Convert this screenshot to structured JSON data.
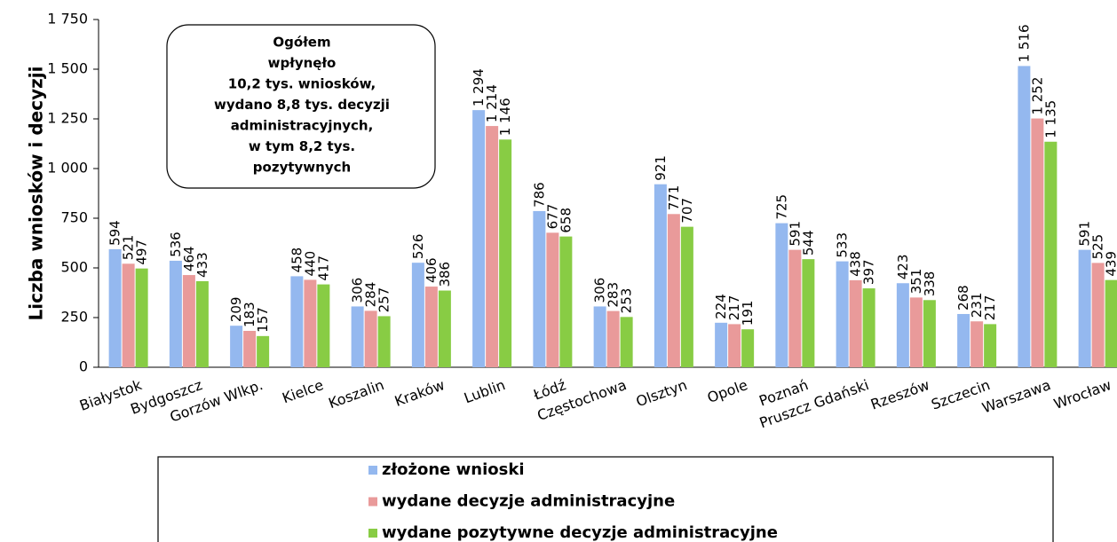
{
  "chart_data": {
    "type": "bar",
    "y_label": "Liczba wniosków i decyzji",
    "annotation": [
      "Ogółem",
      "wpłynęło",
      "10,2 tys. wniosków,",
      "wydano 8,8 tys. decyzji",
      "administracyjnych,",
      "w tym 8,2 tys.",
      "pozytywnych"
    ],
    "categories": [
      "Białystok",
      "Bydgoszcz",
      "Gorzów Wlkp.",
      "Kielce",
      "Koszalin",
      "Kraków",
      "Lublin",
      "Łódź",
      "Częstochowa",
      "Olsztyn",
      "Opole",
      "Poznań",
      "Pruszcz Gdański",
      "Rzeszów",
      "Szczecin",
      "Warszawa",
      "Wrocław"
    ],
    "series": [
      {
        "name": "złożone wnioski",
        "color": "#94b8ef",
        "values": [
          594,
          536,
          209,
          458,
          306,
          526,
          1294,
          786,
          306,
          921,
          224,
          725,
          533,
          423,
          268,
          1516,
          591
        ],
        "value_labels": [
          "594",
          "536",
          "209",
          "458",
          "306",
          "526",
          "1 294",
          "786",
          "306",
          "921",
          "224",
          "725",
          "533",
          "423",
          "268",
          "1 516",
          "591"
        ]
      },
      {
        "name": "wydane decyzje administracyjne",
        "color": "#e99a9a",
        "values": [
          521,
          464,
          183,
          440,
          284,
          406,
          1214,
          677,
          283,
          771,
          217,
          591,
          438,
          351,
          231,
          1252,
          525
        ],
        "value_labels": [
          "521",
          "464",
          "183",
          "440",
          "284",
          "406",
          "1 214",
          "677",
          "283",
          "771",
          "217",
          "591",
          "438",
          "351",
          "231",
          "1 252",
          "525"
        ]
      },
      {
        "name": "wydane pozytywne decyzje administracyjne",
        "color": "#88cc44",
        "values": [
          497,
          433,
          157,
          417,
          257,
          386,
          1146,
          658,
          253,
          707,
          191,
          544,
          397,
          338,
          217,
          1135,
          439
        ],
        "value_labels": [
          "497",
          "433",
          "157",
          "417",
          "257",
          "386",
          "1 146",
          "658",
          "253",
          "707",
          "191",
          "544",
          "397",
          "338",
          "217",
          "1 135",
          "439"
        ]
      }
    ],
    "ylim": [
      0,
      1750
    ],
    "yticks": [
      0,
      250,
      500,
      750,
      {
        "value": 1000,
        "label": "1 000"
      },
      {
        "value": 1250,
        "label": "1 250"
      },
      {
        "value": 1500,
        "label": "1 500"
      },
      {
        "value": 1750,
        "label": "1 750"
      }
    ]
  }
}
